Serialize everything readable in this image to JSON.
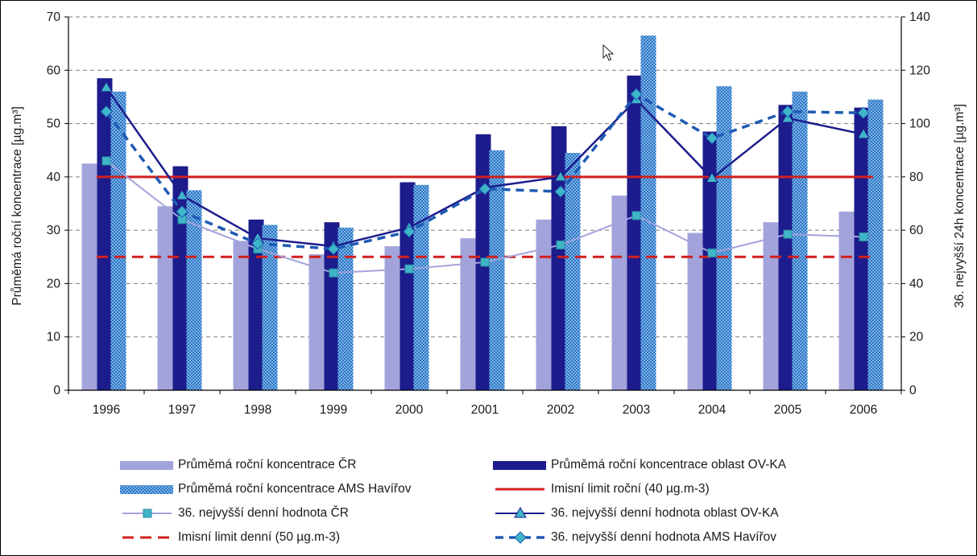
{
  "chart_data": {
    "type": "bar",
    "categories": [
      "1996",
      "1997",
      "1998",
      "1999",
      "2000",
      "2001",
      "2002",
      "2003",
      "2004",
      "2005",
      "2006"
    ],
    "y_left": {
      "label": "Průměmá roční koncentrace [µg.m³]",
      "range": [
        0,
        70
      ],
      "ticks": [
        "0",
        "10",
        "20",
        "30",
        "40",
        "50",
        "60",
        "70"
      ]
    },
    "y_right": {
      "label": "36. nejvyšší 24h koncentrace [µg.m³]",
      "range": [
        0,
        140
      ],
      "ticks": [
        "0",
        "20",
        "40",
        "60",
        "80",
        "100",
        "120",
        "140"
      ]
    },
    "grid": true,
    "legend_position": "bottom",
    "bar_series": [
      {
        "name": "Průměmá roční koncentrace ČR",
        "axis": "left",
        "color": "#a3a3dc",
        "values": [
          42.5,
          34.5,
          28,
          25.5,
          27,
          28.5,
          32,
          36.5,
          29.5,
          31.5,
          33.5
        ]
      },
      {
        "name": "Průměmá roční koncentrace oblast OV-KA",
        "axis": "left",
        "color": "#1c1c8c",
        "values": [
          58.5,
          42,
          32,
          31.5,
          39,
          48,
          49.5,
          59,
          48.5,
          53.5,
          53
        ]
      },
      {
        "name": "Průměmá roční koncentrace AMS Havířov",
        "axis": "left",
        "color": "#2a74c4",
        "values": [
          56,
          37.5,
          31,
          30.5,
          38.5,
          45,
          44.5,
          66.5,
          57,
          56,
          54.5
        ]
      }
    ],
    "limit_series": [
      {
        "name": "Imisní limit roční (40 µg.m-3)",
        "axis": "left",
        "value": 40,
        "color": "#d11f1f",
        "style": "solid"
      },
      {
        "name": "Imisní limit denní (50 µg.m-3)",
        "axis": "right",
        "value": 50,
        "color": "#d11f1f",
        "style": "dashed"
      }
    ],
    "line_series": [
      {
        "name": "36. nejvyšší denní hodnota ČR",
        "axis": "right",
        "color": "#a3a3dc",
        "marker": "square",
        "marker_color": "#3fb6c8",
        "values": [
          86,
          64,
          53,
          44,
          45.5,
          48,
          54.5,
          65.5,
          51.5,
          58.5,
          57.5
        ]
      },
      {
        "name": "36. nejvyšší denní hodnota oblast OV-KA",
        "axis": "right",
        "color": "#1c1c8c",
        "marker": "triangle",
        "marker_color": "#3fb6c8",
        "values": [
          113.5,
          73,
          57,
          54,
          61,
          76,
          80,
          109,
          79.5,
          102,
          96
        ]
      },
      {
        "name": "36. nejvyšší denní hodnota AMS Havířov",
        "axis": "right",
        "color": "#1e5ab4",
        "marker": "diamond",
        "marker_color": "#3fb6c8",
        "style": "dashed",
        "values": [
          104.5,
          67,
          55,
          53,
          59.5,
          75.5,
          74.5,
          111,
          94.5,
          104.5,
          104
        ]
      }
    ]
  },
  "cursor_icon": "mouse-pointer-icon"
}
